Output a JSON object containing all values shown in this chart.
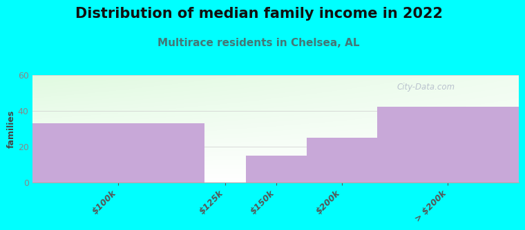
{
  "title": "Distribution of median family income in 2022",
  "subtitle": "Multirace residents in Chelsea, AL",
  "ylabel": "families",
  "categories": [
    "$100k",
    "$125k",
    "$150k",
    "$200k",
    "> $200k"
  ],
  "values": [
    33,
    0,
    15,
    25,
    42
  ],
  "bar_colors": [
    "#c8a8d8",
    "#dde8c0",
    "#c8a8d8",
    "#c8a8d8",
    "#c8a8d8"
  ],
  "bin_edges": [
    0.0,
    0.355,
    0.44,
    0.565,
    0.71,
    1.0
  ],
  "ylim": [
    0,
    60
  ],
  "yticks": [
    0,
    20,
    40,
    60
  ],
  "background_color": "#00ffff",
  "title_fontsize": 15,
  "subtitle_fontsize": 11,
  "subtitle_color": "#447777",
  "ylabel_color": "#444444",
  "watermark": "City-Data.com"
}
